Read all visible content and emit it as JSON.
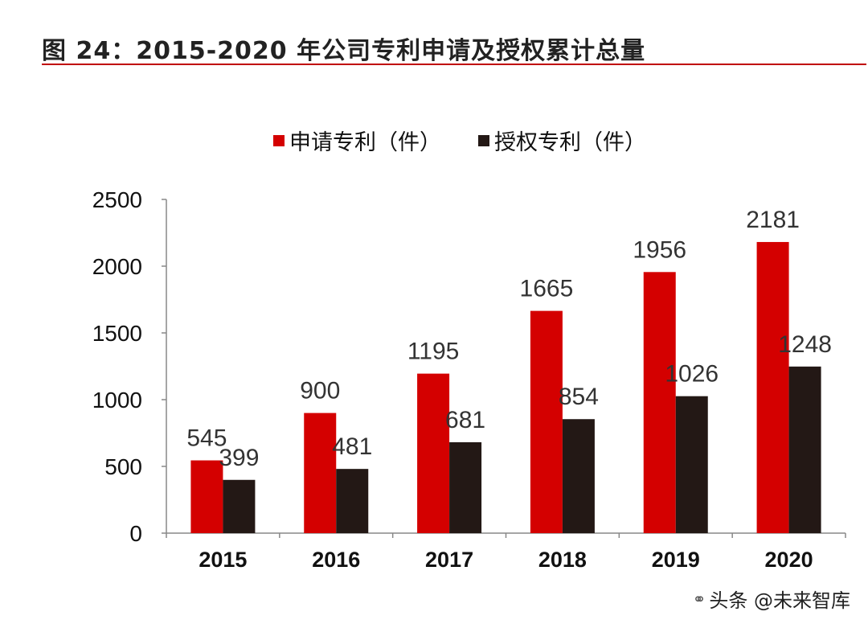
{
  "figure": {
    "title": "图 24：2015-2020 年公司专利申请及授权累计总量"
  },
  "colors": {
    "accent": "#c00000",
    "series_applied": "#d40000",
    "series_granted": "#231815"
  },
  "chart_data": {
    "type": "bar",
    "title": "图 24：2015-2020 年公司专利申请及授权累计总量",
    "xlabel": "",
    "ylabel": "",
    "categories": [
      "2015",
      "2016",
      "2017",
      "2018",
      "2019",
      "2020"
    ],
    "series": [
      {
        "name": "申请专利（件）",
        "values": [
          545,
          900,
          1195,
          1665,
          1956,
          2181
        ]
      },
      {
        "name": "授权专利（件）",
        "values": [
          399,
          481,
          681,
          854,
          1026,
          1248
        ]
      }
    ],
    "ylim": [
      0,
      2500
    ],
    "yticks": [
      "0",
      "500",
      "1000",
      "1500",
      "2000",
      "2500"
    ],
    "grid": false,
    "legend": "top-center"
  },
  "watermark": {
    "icon": "wechat-icon",
    "text": "头条 @未来智库"
  }
}
